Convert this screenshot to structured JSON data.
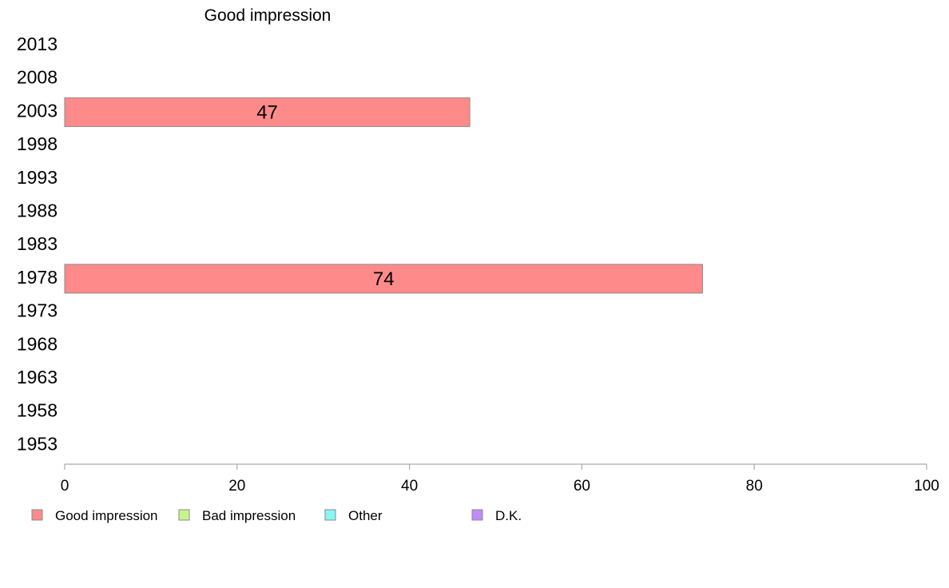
{
  "chart_data": {
    "type": "bar",
    "orientation": "horizontal",
    "title": "Good impression",
    "categories": [
      "2013",
      "2008",
      "2003",
      "1998",
      "1993",
      "1988",
      "1983",
      "1978",
      "1973",
      "1968",
      "1963",
      "1958",
      "1953"
    ],
    "series": [
      {
        "name": "Good impression",
        "color": "#ff8a8a",
        "values": [
          null,
          null,
          47,
          null,
          null,
          null,
          null,
          74,
          null,
          null,
          null,
          null,
          null
        ]
      },
      {
        "name": "Bad impression",
        "color": "#c8f58a",
        "values": [
          null,
          null,
          null,
          null,
          null,
          null,
          null,
          null,
          null,
          null,
          null,
          null,
          null
        ]
      },
      {
        "name": "Other",
        "color": "#8af5f5",
        "values": [
          null,
          null,
          null,
          null,
          null,
          null,
          null,
          null,
          null,
          null,
          null,
          null,
          null
        ]
      },
      {
        "name": "D.K.",
        "color": "#c08aff",
        "values": [
          null,
          null,
          null,
          null,
          null,
          null,
          null,
          null,
          null,
          null,
          null,
          null,
          null
        ]
      }
    ],
    "xlim": [
      0,
      100
    ],
    "xticks": [
      0,
      20,
      40,
      60,
      80,
      100
    ],
    "xlabel": "",
    "ylabel": "",
    "grid": false,
    "legend_position": "bottom-left"
  }
}
